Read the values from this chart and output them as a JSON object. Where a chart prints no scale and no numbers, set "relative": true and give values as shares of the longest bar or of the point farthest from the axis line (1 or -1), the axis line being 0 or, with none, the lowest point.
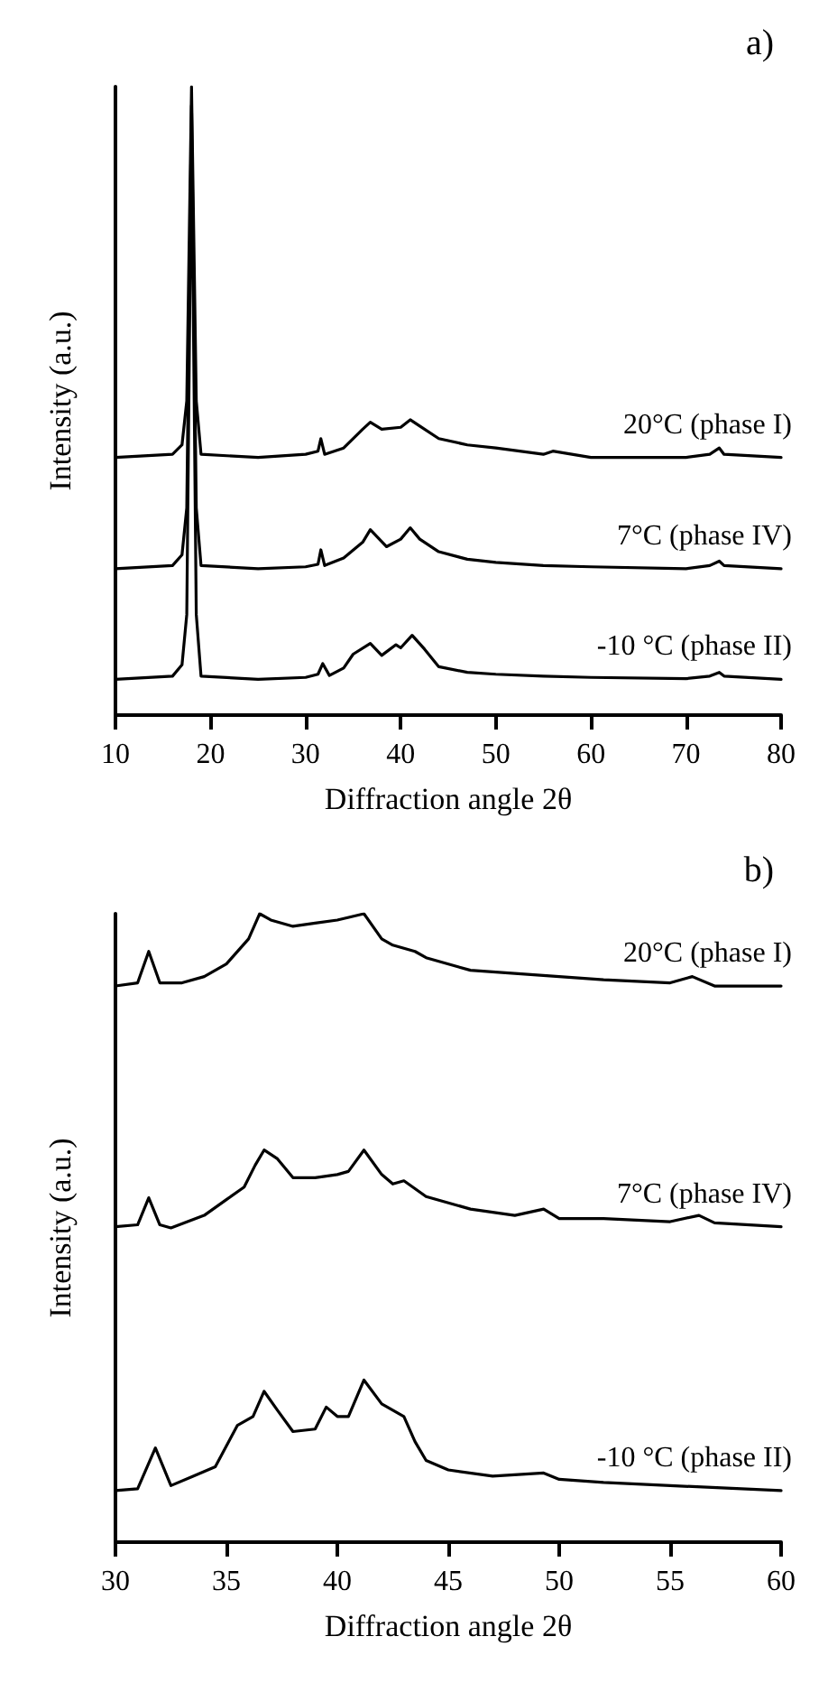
{
  "chart_data": [
    {
      "type": "line",
      "relative": true,
      "xlabel": "Diffraction angle 2θ",
      "ylabel": "Intensity (a.u.)",
      "annotations": [
        "a)"
      ],
      "xlim": [
        10,
        80
      ],
      "xticks": [
        10,
        20,
        30,
        40,
        50,
        60,
        70,
        80
      ],
      "grid": false,
      "legend": false,
      "marker": "none",
      "line_style": "solid",
      "series": [
        {
          "name": "20°C (phase I)",
          "color": "#000000",
          "x": [
            10,
            16,
            17,
            17.5,
            18,
            18.5,
            19,
            25,
            30,
            31.3,
            31.6,
            32,
            34,
            36,
            36.8,
            38,
            40,
            41,
            42,
            44,
            47,
            50,
            55,
            56,
            60,
            70,
            72.5,
            73.5,
            74,
            80
          ],
          "values": [
            0.41,
            0.415,
            0.43,
            0.5,
            1.0,
            0.5,
            0.415,
            0.41,
            0.415,
            0.42,
            0.44,
            0.415,
            0.425,
            0.455,
            0.466,
            0.455,
            0.458,
            0.47,
            0.46,
            0.44,
            0.43,
            0.425,
            0.415,
            0.42,
            0.41,
            0.41,
            0.415,
            0.425,
            0.415,
            0.41
          ]
        },
        {
          "name": "7°C (phase IV)",
          "color": "#000000",
          "x": [
            10,
            16,
            17,
            17.5,
            18,
            18.5,
            19,
            25,
            30,
            31.3,
            31.6,
            32,
            34,
            36,
            36.8,
            38.5,
            40,
            41,
            42,
            44,
            47,
            50,
            55,
            60,
            70,
            72.5,
            73.5,
            74,
            80
          ],
          "values": [
            0.233,
            0.238,
            0.255,
            0.33,
            0.97,
            0.33,
            0.238,
            0.233,
            0.236,
            0.24,
            0.263,
            0.238,
            0.25,
            0.275,
            0.295,
            0.268,
            0.28,
            0.298,
            0.28,
            0.26,
            0.248,
            0.243,
            0.238,
            0.236,
            0.233,
            0.238,
            0.245,
            0.238,
            0.233
          ]
        },
        {
          "name": "-10 °C (phase II)",
          "color": "#000000",
          "x": [
            10,
            16,
            17,
            17.5,
            18,
            18.5,
            19,
            25,
            30,
            31.3,
            31.8,
            32.5,
            34,
            35,
            36.8,
            38,
            39.5,
            40,
            41.2,
            42.5,
            44,
            47,
            50,
            55,
            60,
            70,
            72.5,
            73.5,
            74,
            80
          ],
          "values": [
            0.057,
            0.062,
            0.08,
            0.16,
            0.93,
            0.16,
            0.062,
            0.057,
            0.06,
            0.065,
            0.082,
            0.063,
            0.075,
            0.097,
            0.114,
            0.095,
            0.112,
            0.107,
            0.127,
            0.105,
            0.077,
            0.068,
            0.065,
            0.062,
            0.06,
            0.058,
            0.062,
            0.068,
            0.062,
            0.057
          ]
        }
      ]
    },
    {
      "type": "line",
      "relative": true,
      "xlabel": "Diffraction angle 2θ",
      "ylabel": "Intensity (a.u.)",
      "annotations": [
        "b)"
      ],
      "xlim": [
        30,
        60
      ],
      "xticks": [
        30,
        35,
        40,
        45,
        50,
        55,
        60
      ],
      "grid": false,
      "legend": false,
      "marker": "none",
      "line_style": "solid",
      "series": [
        {
          "name": "20°C (phase I)",
          "color": "#000000",
          "x": [
            30,
            31,
            31.5,
            32,
            33,
            34,
            35,
            36,
            36.5,
            37,
            38,
            39,
            40,
            41.2,
            42,
            42.5,
            43.5,
            44,
            46,
            48,
            50,
            52,
            55,
            56,
            57,
            60
          ],
          "values": [
            0.885,
            0.89,
            0.94,
            0.89,
            0.89,
            0.9,
            0.92,
            0.96,
            1.0,
            0.99,
            0.98,
            0.985,
            0.99,
            1.0,
            0.96,
            0.95,
            0.94,
            0.93,
            0.91,
            0.905,
            0.9,
            0.895,
            0.89,
            0.9,
            0.885,
            0.885
          ]
        },
        {
          "name": "7°C (phase IV)",
          "color": "#000000",
          "x": [
            30,
            31,
            31.5,
            32,
            32.5,
            34,
            35,
            35.8,
            36.3,
            36.7,
            37.3,
            38,
            39,
            40,
            40.5,
            41.2,
            42,
            42.5,
            43,
            44,
            46,
            48,
            49.3,
            50,
            52,
            55,
            56.3,
            57,
            60
          ],
          "values": [
            0.502,
            0.505,
            0.548,
            0.505,
            0.5,
            0.52,
            0.545,
            0.565,
            0.6,
            0.624,
            0.61,
            0.58,
            0.58,
            0.585,
            0.59,
            0.624,
            0.585,
            0.57,
            0.575,
            0.55,
            0.53,
            0.52,
            0.53,
            0.515,
            0.515,
            0.51,
            0.52,
            0.508,
            0.502
          ]
        },
        {
          "name": "-10 °C (phase II)",
          "color": "#000000",
          "x": [
            30,
            31,
            31.8,
            32.5,
            33.5,
            34.5,
            35.5,
            36.2,
            36.7,
            37.3,
            38,
            39,
            39.5,
            40,
            40.5,
            41.2,
            42,
            42.5,
            43,
            43.5,
            44,
            45,
            47,
            49.3,
            50,
            52,
            55,
            60
          ],
          "values": [
            0.082,
            0.085,
            0.15,
            0.09,
            0.105,
            0.12,
            0.186,
            0.2,
            0.24,
            0.21,
            0.176,
            0.18,
            0.215,
            0.2,
            0.2,
            0.258,
            0.22,
            0.21,
            0.2,
            0.16,
            0.13,
            0.115,
            0.105,
            0.11,
            0.1,
            0.095,
            0.09,
            0.082
          ]
        }
      ]
    }
  ]
}
